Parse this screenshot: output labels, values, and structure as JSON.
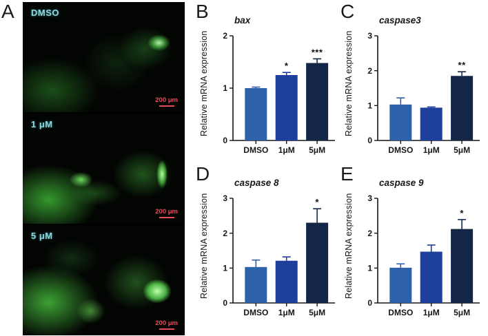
{
  "figure": {
    "panel_letters": [
      "A",
      "B",
      "C",
      "D",
      "E"
    ]
  },
  "microscopy": {
    "images": [
      {
        "label": "DMSO",
        "scale_label": "200 μm"
      },
      {
        "label": "1 μM",
        "scale_label": "200 μm"
      },
      {
        "label": "5 μM",
        "scale_label": "200 μm"
      }
    ]
  },
  "chart_data": [
    {
      "type": "bar",
      "panel": "B",
      "title": "bax",
      "ylabel": "Relative mRNA expression",
      "categories": [
        "DMSO",
        "1μM",
        "5μM"
      ],
      "values": [
        1.0,
        1.25,
        1.48
      ],
      "errors": [
        0.02,
        0.05,
        0.08
      ],
      "significance": [
        "",
        "*",
        "***"
      ],
      "ylim": [
        0,
        2
      ],
      "yticks": [
        0,
        1,
        2
      ],
      "bar_colors": [
        "#2d62aa",
        "#1e3f9c",
        "#142648"
      ],
      "grid": false,
      "legend": false
    },
    {
      "type": "bar",
      "panel": "C",
      "title": "caspase3",
      "ylabel": "Relative mRNA expression",
      "categories": [
        "DMSO",
        "1μM",
        "5μM"
      ],
      "values": [
        1.03,
        0.94,
        1.85
      ],
      "errors": [
        0.19,
        0.02,
        0.12
      ],
      "significance": [
        "",
        "",
        "**"
      ],
      "ylim": [
        0,
        3
      ],
      "yticks": [
        0,
        1,
        2,
        3
      ],
      "bar_colors": [
        "#2d62aa",
        "#1e3f9c",
        "#142648"
      ],
      "grid": false,
      "legend": false
    },
    {
      "type": "bar",
      "panel": "D",
      "title": "caspase 8",
      "ylabel": "Relative mRNA expression",
      "categories": [
        "DMSO",
        "1μM",
        "5μM"
      ],
      "values": [
        1.03,
        1.21,
        2.3
      ],
      "errors": [
        0.2,
        0.11,
        0.4
      ],
      "significance": [
        "",
        "",
        "*"
      ],
      "ylim": [
        0,
        3
      ],
      "yticks": [
        0,
        1,
        2,
        3
      ],
      "bar_colors": [
        "#2d62aa",
        "#1e3f9c",
        "#142648"
      ],
      "grid": false,
      "legend": false
    },
    {
      "type": "bar",
      "panel": "E",
      "title": "caspase 9",
      "ylabel": "Relative mRNA expression",
      "categories": [
        "DMSO",
        "1μM",
        "5μM"
      ],
      "values": [
        1.01,
        1.47,
        2.12
      ],
      "errors": [
        0.11,
        0.19,
        0.27
      ],
      "significance": [
        "",
        "",
        "*"
      ],
      "ylim": [
        0,
        3
      ],
      "yticks": [
        0,
        1,
        2,
        3
      ],
      "bar_colors": [
        "#2d62aa",
        "#1e3f9c",
        "#142648"
      ],
      "grid": false,
      "legend": false
    }
  ]
}
